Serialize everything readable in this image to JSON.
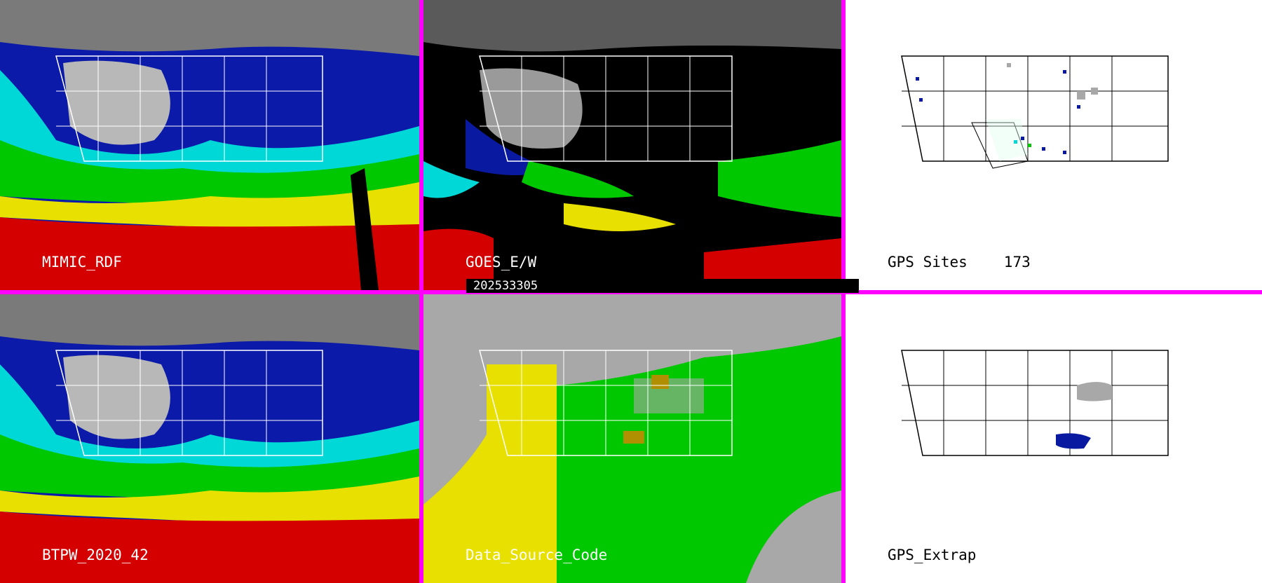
{
  "panels": [
    {
      "id": "mimic",
      "label": "MIMIC_RDF",
      "theme": "dark",
      "bg": "#0b1aa8"
    },
    {
      "id": "goes",
      "label": "GOES_E/W",
      "theme": "dark",
      "bg": "#000000"
    },
    {
      "id": "gps-sites",
      "label": "GPS Sites",
      "count": "173",
      "theme": "light",
      "bg": "#ffffff"
    },
    {
      "id": "btpw",
      "label": "BTPW_2020_42",
      "theme": "dark",
      "bg": "#0b1aa8"
    },
    {
      "id": "dsc",
      "label": "Data_Source_Code",
      "theme": "dark",
      "bg": "#a8a8a8"
    },
    {
      "id": "gps-extrap",
      "label": "GPS_Extrap",
      "theme": "light",
      "bg": "#ffffff"
    }
  ],
  "timestamp": "202533305",
  "colors": {
    "divider": "#ff00ff",
    "red": "#d40000",
    "yellow": "#e8e000",
    "green": "#00c800",
    "cyan": "#00d8d8",
    "blue": "#0a1aa0",
    "gray": "#a8a8a8"
  }
}
